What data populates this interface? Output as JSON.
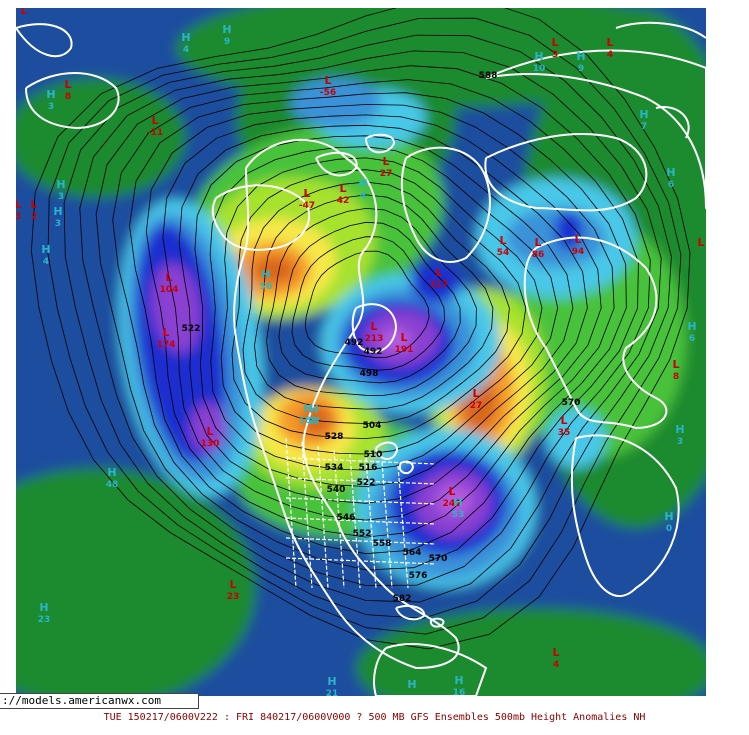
{
  "source_url": "://models.americanwx.com",
  "caption": "TUE 150217/0600V222 : FRI 840217/0600V000  ? 500 MB GFS Ensembles 500mb Height Anomalies NH",
  "colors": {
    "ocean_base": "#1f4e9e",
    "land_green": "#1a8a2e",
    "light_green": "#48c23a",
    "lime": "#a6e22e",
    "yellow": "#f7e84a",
    "orange": "#f59a2b",
    "dark_orange": "#d9661a",
    "cyan": "#49c7e8",
    "light_blue": "#3a92d8",
    "deep_blue": "#1a2fcf",
    "purple": "#8a3fd1",
    "magenta": "#b35ce0",
    "pressure_low": "#cc0000",
    "pressure_high": "#2bb5c9",
    "contour": "#000000",
    "coastline": "#ffffff"
  },
  "contour_labels": [
    "588",
    "522",
    "492",
    "492",
    "498",
    "504",
    "510",
    "516",
    "522",
    "528",
    "534",
    "540",
    "546",
    "552",
    "558",
    "564",
    "570",
    "576",
    "582",
    "570"
  ],
  "pressure_centers": [
    {
      "type": "L",
      "value": ""
    },
    {
      "type": "L",
      "value": "3"
    },
    {
      "type": "L",
      "value": "8"
    },
    {
      "type": "L",
      "value": "-11"
    },
    {
      "type": "L",
      "value": "-56"
    },
    {
      "type": "L",
      "value": "27"
    },
    {
      "type": "L",
      "value": "-47"
    },
    {
      "type": "L",
      "value": "42"
    },
    {
      "type": "L",
      "value": "2"
    },
    {
      "type": "L",
      "value": "104"
    },
    {
      "type": "L",
      "value": "174"
    },
    {
      "type": "L",
      "value": "130"
    },
    {
      "type": "L",
      "value": "117"
    },
    {
      "type": "L",
      "value": "213"
    },
    {
      "type": "L",
      "value": "191"
    },
    {
      "type": "L",
      "value": "54"
    },
    {
      "type": "L",
      "value": "86"
    },
    {
      "type": "L",
      "value": "94"
    },
    {
      "type": "L",
      "value": "35"
    },
    {
      "type": "L",
      "value": "27"
    },
    {
      "type": "L",
      "value": "241"
    },
    {
      "type": "L",
      "value": "23"
    },
    {
      "type": "L",
      "value": "3"
    },
    {
      "type": "L",
      "value": "4"
    },
    {
      "type": "L",
      "value": "8"
    },
    {
      "type": "L",
      "value": ""
    },
    {
      "type": "L",
      "value": "4"
    },
    {
      "type": "H",
      "value": "4"
    },
    {
      "type": "H",
      "value": "9"
    },
    {
      "type": "H",
      "value": "10"
    },
    {
      "type": "H",
      "value": "9"
    },
    {
      "type": "H",
      "value": "3"
    },
    {
      "type": "H",
      "value": "3"
    },
    {
      "type": "H",
      "value": "4"
    },
    {
      "type": "H",
      "value": "7"
    },
    {
      "type": "H",
      "value": "6"
    },
    {
      "type": "H",
      "value": "48"
    },
    {
      "type": "H",
      "value": "27"
    },
    {
      "type": "H",
      "value": "23"
    },
    {
      "type": "H",
      "value": "0"
    },
    {
      "type": "H",
      "value": "21"
    },
    {
      "type": "H",
      "value": ""
    },
    {
      "type": "H",
      "value": "16"
    },
    {
      "type": "H",
      "value": "3"
    },
    {
      "type": "H",
      "value": "6"
    },
    {
      "type": "H",
      "value": "56"
    },
    {
      "type": "H",
      "value": "4"
    },
    {
      "type": "H",
      "value": "3"
    },
    {
      "type": "H",
      "value": "169"
    },
    {
      "type": "H",
      "value": "53"
    }
  ]
}
